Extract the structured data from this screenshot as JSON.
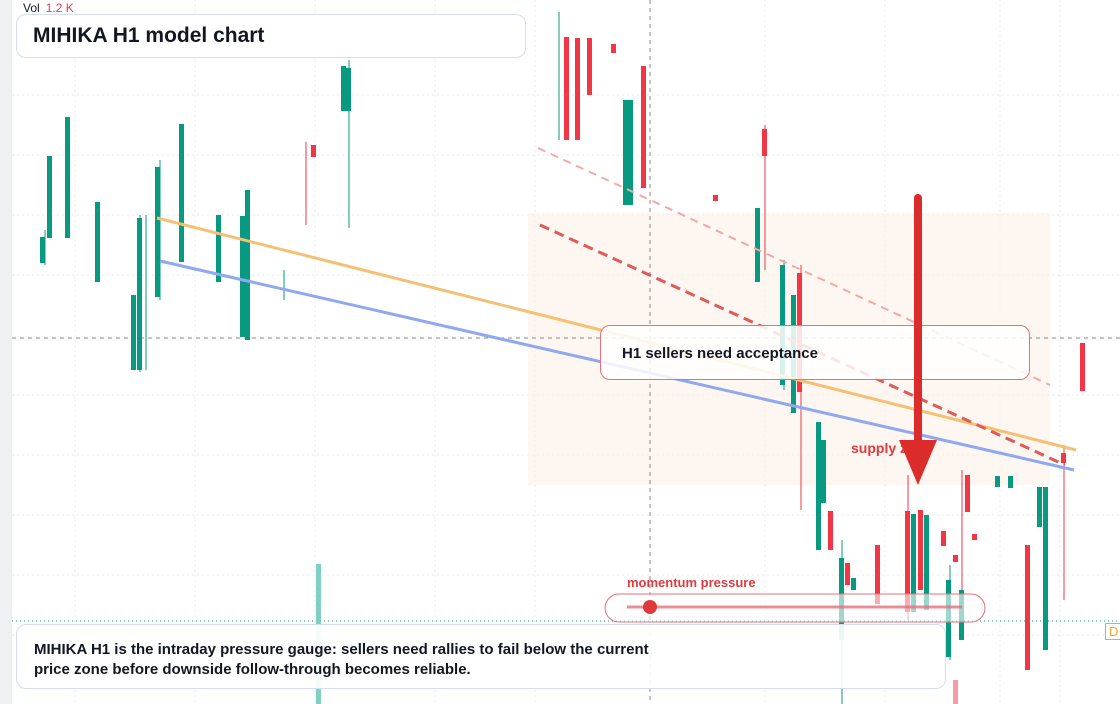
{
  "header": {
    "volume_label": "Vol",
    "volume_value": "1.2 K",
    "title": "MIHIKA H1 model chart"
  },
  "annotations": {
    "callout": "H1 sellers need acceptance",
    "zone": "supply zone",
    "gauge": "momentum pressure",
    "edge_label": "D"
  },
  "footer": {
    "text": "MIHIKA H1 is the intraday pressure gauge: sellers need rallies to fail below the current price zone before downside follow-through becomes reliable."
  }
}
